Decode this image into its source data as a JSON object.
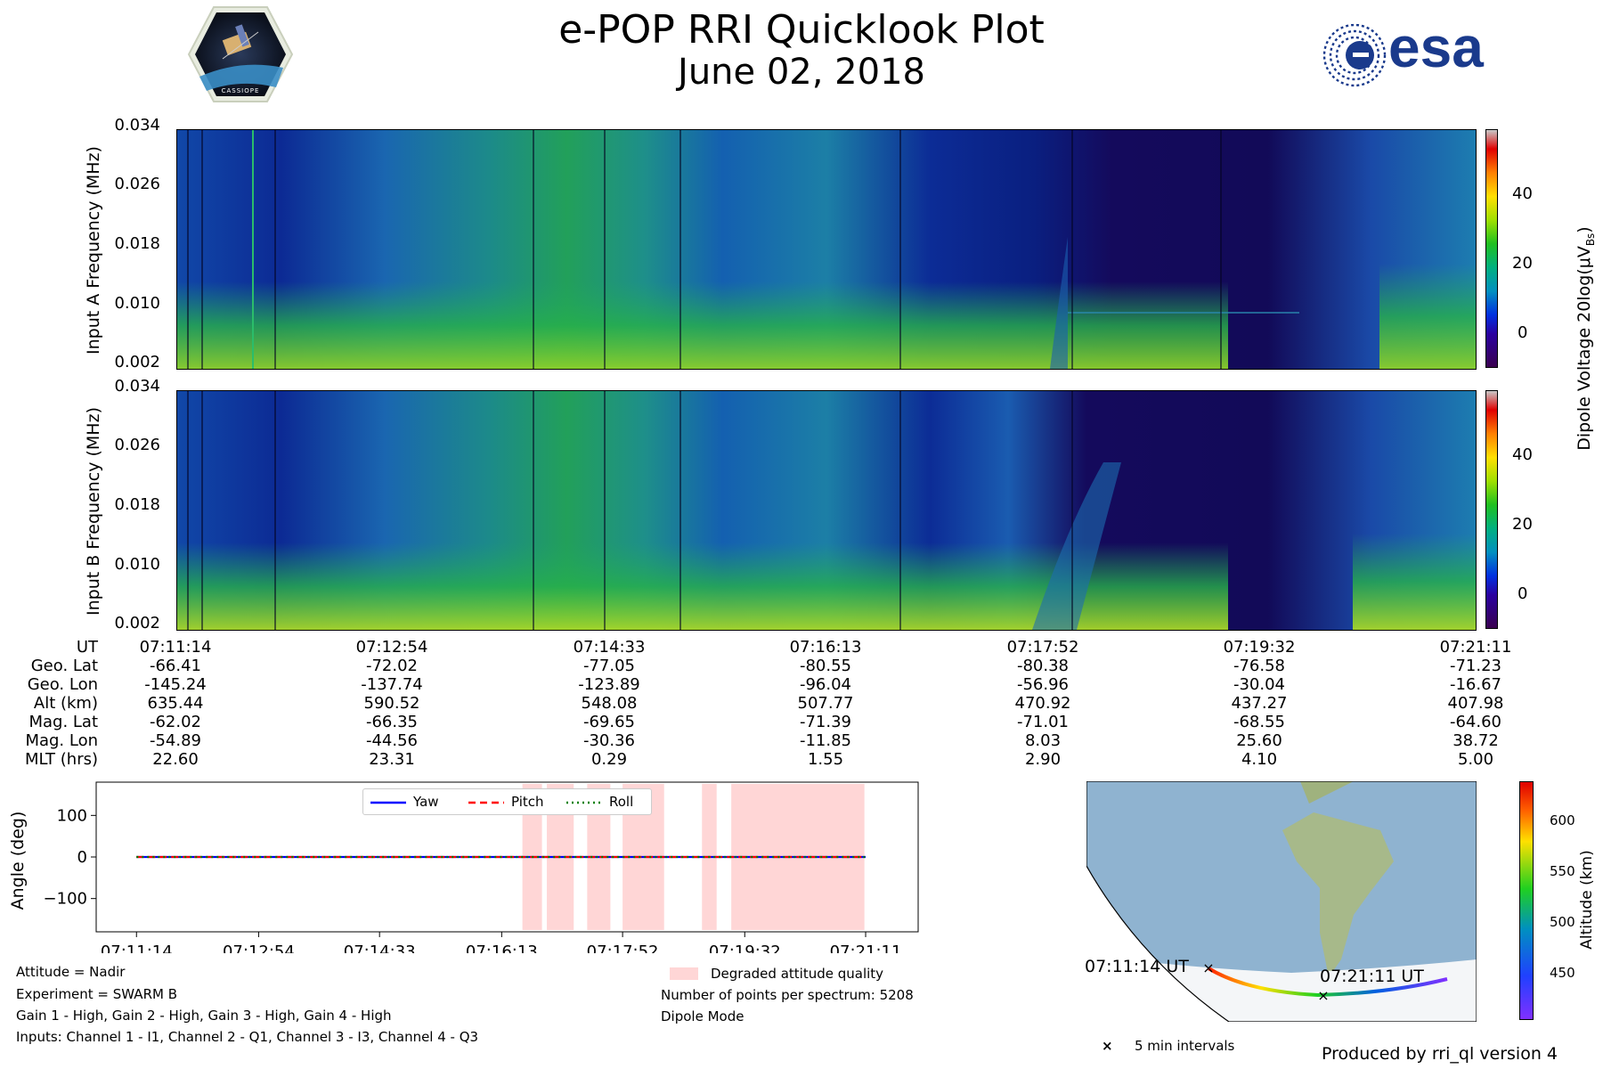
{
  "header": {
    "title": "e-POP RRI Quicklook Plot",
    "date": "June 02, 2018",
    "esa_logo_text": "esa",
    "cassiope_logo_text": "CASSIOPE"
  },
  "panels": {
    "a": {
      "ylabel": "Input A Frequency (MHz)",
      "yticks": [
        "0.034",
        "0.026",
        "0.018",
        "0.010",
        "0.002"
      ]
    },
    "b": {
      "ylabel": "Input B Frequency (MHz)",
      "yticks": [
        "0.034",
        "0.026",
        "0.018",
        "0.010",
        "0.002"
      ]
    }
  },
  "colorbar": {
    "label": "Dipole Voltage 20log(μV",
    "label_sub": "Bs",
    "label_end": ")",
    "ticks": [
      "40",
      "20",
      "0"
    ]
  },
  "orbit_table": {
    "row_labels": [
      "UT",
      "Geo. Lat",
      "Geo. Lon",
      "Alt (km)",
      "Mag. Lat",
      "Mag. Lon",
      "MLT (hrs)"
    ],
    "columns": [
      [
        "07:11:14",
        "-66.41",
        "-145.24",
        "635.44",
        "-62.02",
        "-54.89",
        "22.60"
      ],
      [
        "07:12:54",
        "-72.02",
        "-137.74",
        "590.52",
        "-66.35",
        "-44.56",
        "23.31"
      ],
      [
        "07:14:33",
        "-77.05",
        "-123.89",
        "548.08",
        "-69.65",
        "-30.36",
        "0.29"
      ],
      [
        "07:16:13",
        "-80.55",
        "-96.04",
        "507.77",
        "-71.39",
        "-11.85",
        "1.55"
      ],
      [
        "07:17:52",
        "-80.38",
        "-56.96",
        "470.92",
        "-71.01",
        "8.03",
        "2.90"
      ],
      [
        "07:19:32",
        "-76.58",
        "-30.04",
        "437.27",
        "-68.55",
        "25.60",
        "4.10"
      ],
      [
        "07:21:11",
        "-71.23",
        "-16.67",
        "407.98",
        "-64.60",
        "38.72",
        "5.00"
      ]
    ]
  },
  "attitude_plot": {
    "ylabel": "Angle (deg)",
    "yticks": [
      "100",
      "0",
      "−100"
    ],
    "xticks": [
      "07:11:14",
      "07:12:54",
      "07:14:33",
      "07:16:13",
      "07:17:52",
      "07:19:32",
      "07:21:11"
    ],
    "legend": [
      "Yaw",
      "Pitch",
      "Roll"
    ]
  },
  "chart_data": {
    "type": "line",
    "title": "",
    "xlabel": "",
    "ylabel": "Angle (deg)",
    "ylim": [
      -180,
      180
    ],
    "xlim": [
      "07:11:14",
      "07:21:11"
    ],
    "series": [
      {
        "name": "Yaw",
        "color": "#0000ff",
        "style": "solid",
        "x": [
          "07:11:14",
          "07:21:11"
        ],
        "values": [
          0,
          0
        ]
      },
      {
        "name": "Pitch",
        "color": "#ff0000",
        "style": "dashed",
        "x": [
          "07:11:14",
          "07:21:11"
        ],
        "values": [
          0,
          0
        ]
      },
      {
        "name": "Roll",
        "color": "#008000",
        "style": "dotted",
        "x": [
          "07:11:14",
          "07:21:11"
        ],
        "values": [
          0,
          0
        ]
      }
    ],
    "degraded_intervals": [
      [
        "07:16:30",
        "07:16:46"
      ],
      [
        "07:16:50",
        "07:17:12"
      ],
      [
        "07:17:23",
        "07:17:42"
      ],
      [
        "07:17:52",
        "07:18:26"
      ],
      [
        "07:18:57",
        "07:19:09"
      ],
      [
        "07:19:21",
        "07:21:10"
      ]
    ],
    "degraded_color": "#ffd6d6"
  },
  "footer_left": [
    "Attitude = Nadir",
    "Experiment = SWARM B",
    "Gain 1 - High, Gain 2 - High, Gain 3 - High, Gain 4 - High",
    "Inputs: Channel 1 - I1, Channel 2 - Q1, Channel 3 - I3, Channel 4 - Q3"
  ],
  "footer_mid": {
    "legend": "Degraded attitude quality",
    "points": "Number of points per spectrum: 5208",
    "mode": "Dipole Mode"
  },
  "map": {
    "start_label": "07:11:14 UT",
    "end_label": "07:21:11 UT",
    "interval_legend": "5 min intervals",
    "altitude_label": "Altitude (km)",
    "altitude_ticks": [
      "600",
      "550",
      "500",
      "450"
    ]
  },
  "produced_by": "Produced by rri_ql version 4"
}
